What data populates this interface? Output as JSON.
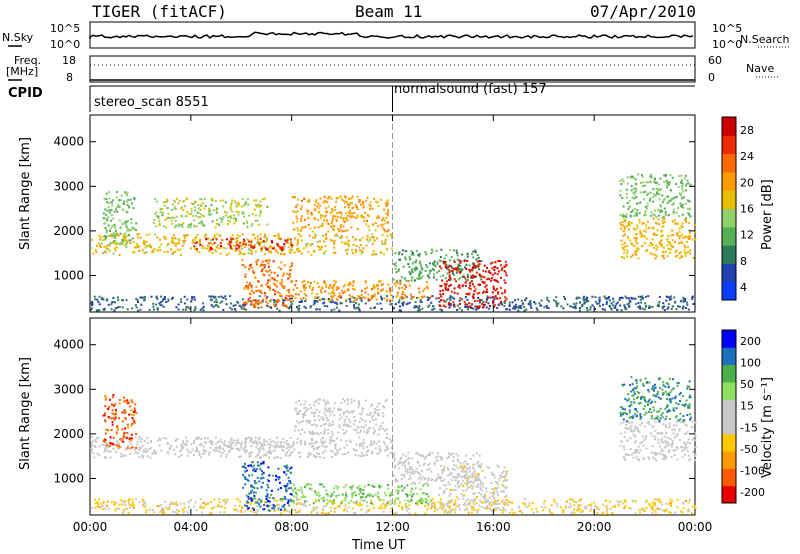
{
  "header": {
    "radar": "TIGER (fitACF)",
    "beam": "Beam 11",
    "date": "07/Apr/2010"
  },
  "strip": {
    "nsky_label": "N.Sky",
    "nsky_ticks": [
      "10^5",
      "10^0"
    ],
    "nsearch_label": "N.Search",
    "nsearch_ticks": [
      "10^5",
      "10^0"
    ],
    "freq_label_line1": "Freq.",
    "freq_label_line2": "[MHz]",
    "freq_ticks": [
      "18",
      "8"
    ],
    "nave_label": "Nave",
    "nave_ticks": [
      "60",
      "0"
    ]
  },
  "cpid": {
    "label": "CPID",
    "modes": [
      {
        "name": "stereo_scan 8551",
        "start_hour": 0
      },
      {
        "name": "normalsound (fast) 157",
        "start_hour": 12
      }
    ]
  },
  "chart_data": [
    {
      "type": "heatmap",
      "title": "",
      "xlabel": "Time UT",
      "ylabel": "Slant Range [km]",
      "xlim": [
        0,
        24
      ],
      "ylim": [
        180,
        4600
      ],
      "x_ticks": [
        "00:00",
        "04:00",
        "08:00",
        "12:00",
        "16:00",
        "20:00",
        "00:00"
      ],
      "y_ticks": [
        "1000",
        "2000",
        "3000",
        "4000"
      ],
      "colorbar": {
        "label": "Power [dB]",
        "ticks": [
          "28",
          "24",
          "20",
          "16",
          "12",
          "8",
          "4"
        ],
        "range": [
          0,
          30
        ],
        "colors": [
          "#0a3cff",
          "#2340b0",
          "#2f7a5a",
          "#55b055",
          "#8fd06a",
          "#e6c000",
          "#ff9b00",
          "#ff6a00",
          "#f02a00",
          "#cc0000"
        ]
      },
      "regions": [
        {
          "t0": 0.0,
          "t1": 24.0,
          "r0": 230,
          "r1": 560,
          "value": 6
        },
        {
          "t0": 0.0,
          "t1": 12.0,
          "r0": 1480,
          "r1": 1950,
          "value": 17
        },
        {
          "t0": 4.0,
          "t1": 8.0,
          "r0": 1600,
          "r1": 1850,
          "value": 26
        },
        {
          "t0": 2.5,
          "t1": 7.0,
          "r0": 2100,
          "r1": 2750,
          "value": 14
        },
        {
          "t0": 8.0,
          "t1": 11.8,
          "r0": 2000,
          "r1": 2800,
          "value": 19
        },
        {
          "t0": 6.0,
          "t1": 8.0,
          "r0": 300,
          "r1": 1400,
          "value": 22
        },
        {
          "t0": 0.5,
          "t1": 1.8,
          "r0": 1700,
          "r1": 2900,
          "value": 12
        },
        {
          "t0": 8.0,
          "t1": 13.5,
          "r0": 450,
          "r1": 900,
          "value": 20
        },
        {
          "t0": 12.0,
          "t1": 15.5,
          "r0": 900,
          "r1": 1600,
          "value": 10
        },
        {
          "t0": 13.8,
          "t1": 16.5,
          "r0": 300,
          "r1": 1350,
          "value": 27
        },
        {
          "t0": 21.0,
          "t1": 24.0,
          "r0": 1400,
          "r1": 2300,
          "value": 18
        },
        {
          "t0": 21.0,
          "t1": 23.8,
          "r0": 2300,
          "r1": 3300,
          "value": 12
        }
      ]
    },
    {
      "type": "heatmap",
      "title": "",
      "xlabel": "Time UT",
      "ylabel": "Slant Range [km]",
      "xlim": [
        0,
        24
      ],
      "ylim": [
        180,
        4600
      ],
      "x_ticks": [
        "00:00",
        "04:00",
        "08:00",
        "12:00",
        "16:00",
        "20:00",
        "00:00"
      ],
      "y_ticks": [
        "1000",
        "2000",
        "3000",
        "4000"
      ],
      "colorbar": {
        "label": "Velocity [m s⁻¹]",
        "ticks": [
          "200",
          "100",
          "50",
          "15",
          "-15",
          "-50",
          "-100",
          "-200"
        ],
        "range": [
          -250,
          250
        ],
        "colors": [
          "#e80000",
          "#ff5a00",
          "#ff9a00",
          "#ffc800",
          "#c8c8c8",
          "#c8c8c8",
          "#90e060",
          "#4cb04c",
          "#1f6fbf",
          "#0000ff"
        ]
      },
      "ground_scatter_color": "#c8c8c8",
      "regions": [
        {
          "t0": 0.0,
          "t1": 24.0,
          "r0": 230,
          "r1": 560,
          "value": -60
        },
        {
          "t0": 0.0,
          "t1": 12.0,
          "r0": 1480,
          "r1": 1950,
          "value": 0
        },
        {
          "t0": 4.0,
          "t1": 8.0,
          "r0": 1600,
          "r1": 1850,
          "value": 0
        },
        {
          "t0": 8.0,
          "t1": 11.8,
          "r0": 2000,
          "r1": 2800,
          "value": 0
        },
        {
          "t0": 6.0,
          "t1": 8.0,
          "r0": 300,
          "r1": 1400,
          "value": 180
        },
        {
          "t0": 0.5,
          "t1": 1.8,
          "r0": 1700,
          "r1": 2900,
          "value": -180
        },
        {
          "t0": 8.0,
          "t1": 13.5,
          "r0": 450,
          "r1": 900,
          "value": 90
        },
        {
          "t0": 12.0,
          "t1": 15.5,
          "r0": 900,
          "r1": 1600,
          "value": 0
        },
        {
          "t0": 13.8,
          "t1": 16.5,
          "r0": 300,
          "r1": 1350,
          "value": -20
        },
        {
          "t0": 21.0,
          "t1": 24.0,
          "r0": 1400,
          "r1": 2300,
          "value": 0
        },
        {
          "t0": 21.0,
          "t1": 23.8,
          "r0": 2300,
          "r1": 3300,
          "value": 150
        }
      ]
    }
  ]
}
